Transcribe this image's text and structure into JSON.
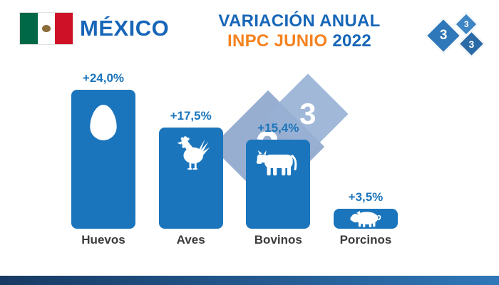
{
  "header": {
    "country_label": "MÉXICO",
    "title_line1": "VARIACIÓN ANUAL",
    "title_inpc": "INPC JUNIO",
    "title_year": "2022",
    "flag": "mexico-flag",
    "logo_threes": [
      "3",
      "3",
      "3"
    ]
  },
  "watermark": {
    "threes": [
      "3",
      "3"
    ]
  },
  "chart_data": {
    "type": "bar",
    "title": "VARIACIÓN ANUAL INPC JUNIO 2022",
    "categories": [
      "Huevos",
      "Aves",
      "Bovinos",
      "Porcinos"
    ],
    "values": [
      24.0,
      17.5,
      15.4,
      3.5
    ],
    "value_labels": [
      "+24,0%",
      "+17,5%",
      "+15,4%",
      "+3,5%"
    ],
    "icons": [
      "egg-icon",
      "rooster-icon",
      "cow-icon",
      "pig-icon"
    ],
    "unit": "%",
    "ylim": [
      0,
      24
    ],
    "grid": false,
    "legend": "none",
    "bar_color": "#1b75bc"
  },
  "colors": {
    "title_blue": "#1766b8",
    "accent_orange": "#f5821f",
    "bar_blue": "#1b75bc",
    "value_label_blue": "#1b75bc",
    "category_label": "#3b3b3b",
    "watermark_blue": "#8ca6cc",
    "footer_gradient_start": "#173a63",
    "footer_gradient_end": "#2f77b8"
  }
}
